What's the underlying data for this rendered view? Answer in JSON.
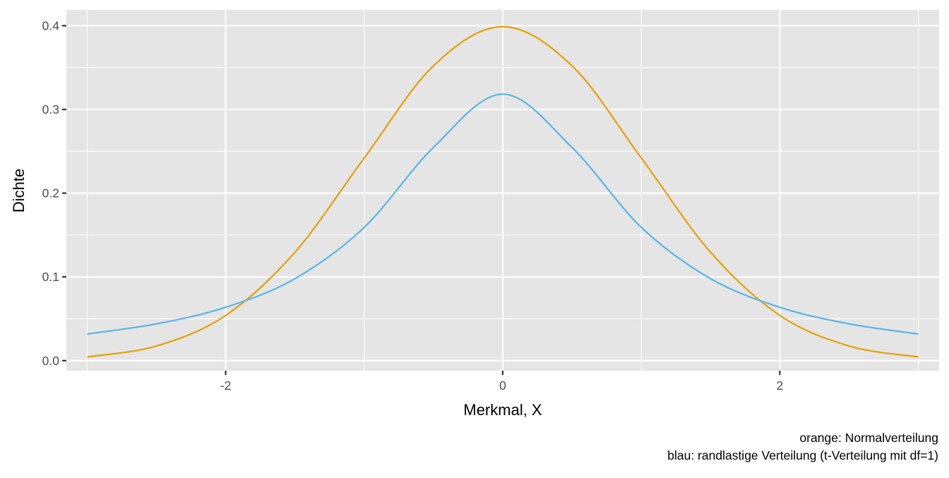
{
  "chart_data": {
    "type": "line",
    "title": "",
    "xlabel": "Merkmal, X",
    "ylabel": "Dichte",
    "caption": [
      "orange: Normalverteilung",
      "blau: randlastige Verteilung (t-Verteilung mit df=1)"
    ],
    "xlim": [
      -3.15,
      3.15
    ],
    "ylim": [
      -0.012,
      0.4189
    ],
    "x_ticks": [
      -2,
      0,
      2
    ],
    "x_tick_labels": [
      "-2",
      "0",
      "2"
    ],
    "x_minor": [
      -3,
      -1,
      1,
      3
    ],
    "y_ticks": [
      0.0,
      0.1,
      0.2,
      0.3,
      0.4
    ],
    "y_tick_labels": [
      "0.0",
      "0.1",
      "0.2",
      "0.3",
      "0.4"
    ],
    "y_minor": [
      0.05,
      0.15,
      0.25,
      0.35
    ],
    "grid": true,
    "legend": "none",
    "x": [
      -3.0,
      -2.5,
      -2.0,
      -1.5,
      -1.0,
      -0.5,
      0.0,
      0.5,
      1.0,
      1.5,
      2.0,
      2.5,
      3.0
    ],
    "series": [
      {
        "color": "#E69F00",
        "values": [
          0.0044,
          0.0175,
          0.054,
          0.1295,
          0.242,
          0.3521,
          0.3989,
          0.3521,
          0.242,
          0.1295,
          0.054,
          0.0175,
          0.0044
        ]
      },
      {
        "color": "#56B4E9",
        "values": [
          0.0318,
          0.0439,
          0.0637,
          0.0979,
          0.1592,
          0.2546,
          0.3183,
          0.2546,
          0.1592,
          0.0979,
          0.0637,
          0.0439,
          0.0318
        ]
      }
    ]
  }
}
